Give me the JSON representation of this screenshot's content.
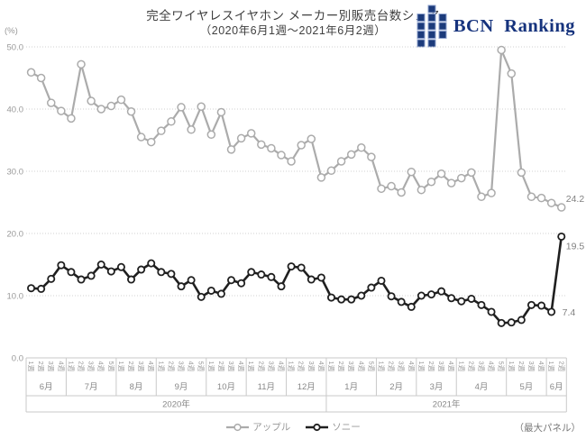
{
  "header": {
    "title_line1": "完全ワイヤレスイヤホン メーカー別販売台数シェア",
    "title_line2": "（2020年6月1週～2021年6月2週）",
    "logo_text": "BCN Ranking",
    "logo_color": "#16337d"
  },
  "chart_data": {
    "type": "line",
    "title": "完全ワイヤレスイヤホン メーカー別販売台数シェア（2020年6月1週～2021年6月2週）",
    "grid": "horizontal-dotted",
    "legend_position": "bottom-center",
    "y_axis": {
      "unit": "(%)",
      "ylim": [
        0,
        50
      ],
      "ticks": [
        {
          "value": 0,
          "label": "0.0"
        },
        {
          "value": 10,
          "label": "10.0"
        },
        {
          "value": 20,
          "label": "20.0"
        },
        {
          "value": 30,
          "label": "30.0"
        },
        {
          "value": 40,
          "label": "40.0"
        },
        {
          "value": 50,
          "label": "50.0"
        }
      ]
    },
    "months": [
      {
        "label": "6月",
        "weeks": [
          "1週",
          "2週",
          "3週",
          "4週"
        ]
      },
      {
        "label": "7月",
        "weeks": [
          "1週",
          "2週",
          "3週",
          "4週",
          "5週"
        ]
      },
      {
        "label": "8月",
        "weeks": [
          "1週",
          "2週",
          "3週",
          "4週"
        ]
      },
      {
        "label": "9月",
        "weeks": [
          "1週",
          "2週",
          "3週",
          "4週",
          "5週"
        ]
      },
      {
        "label": "10月",
        "weeks": [
          "1週",
          "2週",
          "3週",
          "4週"
        ]
      },
      {
        "label": "11月",
        "weeks": [
          "1週",
          "2週",
          "3週",
          "4週"
        ]
      },
      {
        "label": "12月",
        "weeks": [
          "1週",
          "2週",
          "3週",
          "4週"
        ]
      },
      {
        "label": "1月",
        "weeks": [
          "1週",
          "2週",
          "3週",
          "4週",
          "5週"
        ]
      },
      {
        "label": "2月",
        "weeks": [
          "1週",
          "2週",
          "3週",
          "4週"
        ]
      },
      {
        "label": "3月",
        "weeks": [
          "1週",
          "2週",
          "3週",
          "4週"
        ]
      },
      {
        "label": "4月",
        "weeks": [
          "1週",
          "2週",
          "3週",
          "4週",
          "5週"
        ]
      },
      {
        "label": "5月",
        "weeks": [
          "1週",
          "2週",
          "3週",
          "4週"
        ]
      },
      {
        "label": "6月",
        "weeks": [
          "1週",
          "2週"
        ]
      }
    ],
    "years": [
      {
        "label": "2020年",
        "months_span": 7
      },
      {
        "label": "2021年",
        "months_span": 6
      }
    ],
    "series": [
      {
        "id": "apple",
        "name": "アップル",
        "color": "#ababab",
        "values": [
          45.9,
          45.0,
          41.0,
          39.7,
          38.5,
          47.2,
          41.3,
          40.0,
          40.5,
          41.5,
          39.6,
          35.5,
          34.7,
          36.5,
          38.0,
          40.3,
          36.7,
          40.4,
          35.9,
          39.5,
          33.5,
          35.3,
          36.1,
          34.3,
          33.7,
          32.6,
          31.6,
          34.2,
          35.2,
          29.0,
          30.1,
          31.6,
          32.7,
          33.8,
          32.3,
          27.2,
          27.6,
          26.6,
          29.9,
          27.0,
          28.3,
          29.6,
          28.1,
          28.9,
          29.8,
          25.9,
          26.5,
          49.5,
          45.7,
          29.8,
          25.9,
          25.7,
          24.9,
          24.2
        ]
      },
      {
        "id": "sony",
        "name": "ソニー",
        "color": "#1f1f1f",
        "values": [
          11.2,
          11.1,
          12.7,
          14.9,
          13.8,
          12.6,
          13.2,
          15.0,
          13.9,
          14.6,
          12.6,
          14.2,
          15.2,
          13.8,
          13.5,
          11.5,
          12.5,
          9.8,
          10.8,
          10.3,
          12.5,
          12.0,
          13.8,
          13.4,
          13.0,
          11.5,
          14.7,
          14.5,
          12.6,
          12.9,
          9.7,
          9.4,
          9.4,
          10.0,
          11.3,
          12.4,
          9.9,
          9.0,
          8.2,
          10.0,
          10.2,
          10.7,
          9.6,
          9.1,
          9.5,
          8.5,
          7.4,
          5.6,
          5.7,
          6.1,
          8.5,
          8.4,
          7.4,
          19.5
        ]
      }
    ],
    "point_labels": [
      {
        "series_index": 0,
        "point_index": 53,
        "text": "24.2",
        "placement": "above-right"
      },
      {
        "series_index": 1,
        "point_index": 53,
        "text": "19.5",
        "placement": "below-right"
      },
      {
        "series_index": 1,
        "point_index": 52,
        "text": "7.4",
        "placement": "right"
      }
    ],
    "note": "（最大パネル）"
  }
}
